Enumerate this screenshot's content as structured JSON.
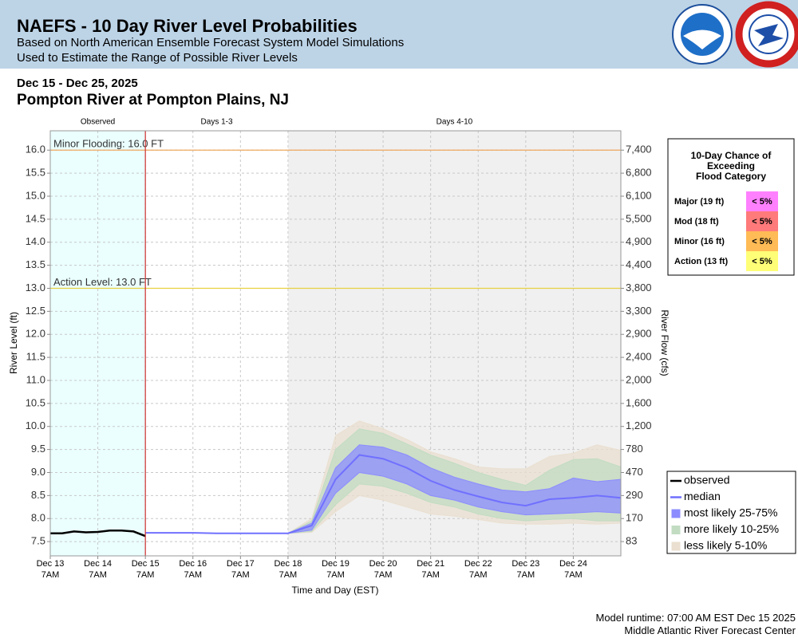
{
  "header": {
    "title": "NAEFS - 10 Day River Level Probabilities",
    "subtitle_1": "Based on North American Ensemble Forecast System Model Simulations",
    "subtitle_2": "Used to Estimate the Range of Possible River Levels",
    "date_range": "Dec 15 - Dec 25, 2025",
    "location": "Pompton River at Pompton Plains, NJ"
  },
  "chart_data": {
    "type": "probability-band",
    "y_label": "River Level (ft)",
    "y2_label": "River Flow (cfs)",
    "x_label": "Time and Day (EST)",
    "xlim": [
      "2025-12-13T07:00",
      "2025-12-25T07:00"
    ],
    "xticks": [
      {
        "value": "2025-12-13T07:00",
        "label": "Dec 13\n7AM"
      },
      {
        "value": "2025-12-14T07:00",
        "label": "Dec 14\n7AM"
      },
      {
        "value": "2025-12-15T07:00",
        "label": "Dec 15\n7AM"
      },
      {
        "value": "2025-12-16T07:00",
        "label": "Dec 16\n7AM"
      },
      {
        "value": "2025-12-17T07:00",
        "label": "Dec 17\n7AM"
      },
      {
        "value": "2025-12-18T07:00",
        "label": "Dec 18\n7AM"
      },
      {
        "value": "2025-12-19T07:00",
        "label": "Dec 19\n7AM"
      },
      {
        "value": "2025-12-20T07:00",
        "label": "Dec 20\n7AM"
      },
      {
        "value": "2025-12-21T07:00",
        "label": "Dec 21\n7AM"
      },
      {
        "value": "2025-12-22T07:00",
        "label": "Dec 22\n7AM"
      },
      {
        "value": "2025-12-23T07:00",
        "label": "Dec 23\n7AM"
      },
      {
        "value": "2025-12-24T07:00",
        "label": "Dec 24\n7AM"
      }
    ],
    "ylim": [
      7.19,
      16.42
    ],
    "yticks": [
      7.5,
      {
        "value": 8,
        "label": "8.0"
      },
      8.5,
      {
        "value": 9,
        "label": "9.0"
      },
      9.5,
      {
        "value": 10,
        "label": "10.0"
      },
      10.5,
      {
        "value": 11,
        "label": "11.0"
      },
      11.5,
      {
        "value": 12,
        "label": "12.0"
      },
      12.5,
      {
        "value": 13,
        "label": "13.0"
      },
      13.5,
      {
        "value": 14,
        "label": "14.0"
      },
      14.5,
      {
        "value": 15,
        "label": "15.0"
      },
      15.5,
      {
        "value": 16,
        "label": "16.0"
      }
    ],
    "y2ticks": [
      83,
      170,
      290,
      470,
      780,
      {
        "value": 1200,
        "label": "1,200"
      },
      {
        "value": 1600,
        "label": "1,600"
      },
      {
        "value": 2000,
        "label": "2,000"
      },
      {
        "value": 2400,
        "label": "2,400"
      },
      {
        "value": 2900,
        "label": "2,900"
      },
      {
        "value": 3300,
        "label": "3,300"
      },
      {
        "value": 3800,
        "label": "3,800"
      },
      {
        "value": 4400,
        "label": "4,400"
      },
      {
        "value": 4900,
        "label": "4,900"
      },
      {
        "value": 5500,
        "label": "5,500"
      },
      {
        "value": 6100,
        "label": "6,100"
      },
      {
        "value": 6800,
        "label": "6,800"
      },
      {
        "value": 7400,
        "label": "7,400"
      }
    ],
    "grid": true,
    "regions": [
      {
        "label": "Observed",
        "start": "2025-12-13T07:00",
        "end": "2025-12-15T07:00",
        "color": "#ebffff"
      },
      {
        "label": "Days 1-3",
        "start": "2025-12-15T07:00",
        "end": "2025-12-18T07:00",
        "color": "#ffffff"
      },
      {
        "label": "Days 4-10",
        "start": "2025-12-18T07:00",
        "end": "2025-12-25T07:00",
        "color": "#f0f0f0"
      }
    ],
    "thresholds": [
      {
        "label": "Minor Flooding: 16.0 FT",
        "value": 16.0,
        "color": "#f0a860"
      },
      {
        "label": "Action Level: 13.0 FT",
        "value": 13.0,
        "color": "#e8d040"
      }
    ],
    "x": [
      "2025-12-15T07:00",
      "2025-12-15T19:00",
      "2025-12-16T07:00",
      "2025-12-16T19:00",
      "2025-12-17T07:00",
      "2025-12-17T19:00",
      "2025-12-18T07:00",
      "2025-12-18T19:00",
      "2025-12-19T07:00",
      "2025-12-19T19:00",
      "2025-12-20T07:00",
      "2025-12-20T19:00",
      "2025-12-21T07:00",
      "2025-12-21T19:00",
      "2025-12-22T07:00",
      "2025-12-22T19:00",
      "2025-12-23T07:00",
      "2025-12-23T19:00",
      "2025-12-24T07:00",
      "2025-12-24T19:00",
      "2025-12-25T07:00"
    ],
    "series": [
      {
        "name": "observed",
        "kind": "line",
        "color": "#000000",
        "x": [
          "2025-12-13T07:00",
          "2025-12-13T13:00",
          "2025-12-13T19:00",
          "2025-12-14T01:00",
          "2025-12-14T07:00",
          "2025-12-14T13:00",
          "2025-12-14T19:00",
          "2025-12-15T01:00",
          "2025-12-15T07:00"
        ],
        "values": [
          7.68,
          7.68,
          7.72,
          7.7,
          7.71,
          7.74,
          7.74,
          7.72,
          7.62
        ]
      },
      {
        "name": "median",
        "kind": "line",
        "color": "#7070ff",
        "values": [
          7.69,
          7.69,
          7.69,
          7.68,
          7.68,
          7.68,
          7.68,
          7.85,
          8.85,
          9.38,
          9.3,
          9.1,
          8.82,
          8.62,
          8.48,
          8.35,
          8.28,
          8.42,
          8.45,
          8.5,
          8.45
        ]
      },
      {
        "name": "most likely 25-75%",
        "kind": "band",
        "color": "#8c8cff",
        "high": [
          7.69,
          7.69,
          7.69,
          7.68,
          7.68,
          7.68,
          7.68,
          7.9,
          9.1,
          9.6,
          9.55,
          9.38,
          9.1,
          8.9,
          8.75,
          8.62,
          8.58,
          8.65,
          8.88,
          8.8,
          8.85
        ],
        "low": [
          7.69,
          7.69,
          7.69,
          7.68,
          7.68,
          7.68,
          7.68,
          7.75,
          8.55,
          9.0,
          8.92,
          8.75,
          8.5,
          8.4,
          8.25,
          8.15,
          8.08,
          8.1,
          8.12,
          8.15,
          8.12
        ]
      },
      {
        "name": "more likely 10-25%",
        "kind": "band",
        "color": "#c2dcc2",
        "high": [
          7.69,
          7.69,
          7.69,
          7.68,
          7.68,
          7.68,
          7.68,
          7.95,
          9.5,
          9.95,
          9.85,
          9.62,
          9.38,
          9.2,
          9.0,
          8.85,
          8.72,
          9.05,
          9.28,
          9.3,
          9.12
        ],
        "low": [
          7.69,
          7.69,
          7.69,
          7.68,
          7.68,
          7.68,
          7.68,
          7.72,
          8.3,
          8.75,
          8.7,
          8.55,
          8.35,
          8.25,
          8.1,
          8.0,
          7.95,
          7.98,
          8.0,
          7.95,
          7.95
        ]
      },
      {
        "name": "less likely 5-10%",
        "kind": "band",
        "color": "#eadfd0",
        "high": [
          7.69,
          7.69,
          7.69,
          7.68,
          7.68,
          7.68,
          7.68,
          8.0,
          9.8,
          10.12,
          9.95,
          9.72,
          9.45,
          9.3,
          9.12,
          9.08,
          9.08,
          9.35,
          9.42,
          9.6,
          9.48
        ],
        "low": [
          7.69,
          7.69,
          7.69,
          7.68,
          7.68,
          7.68,
          7.68,
          7.7,
          8.15,
          8.5,
          8.4,
          8.25,
          8.1,
          8.05,
          7.98,
          7.9,
          7.88,
          7.88,
          7.9,
          7.88,
          7.9
        ]
      }
    ]
  },
  "flood_table": {
    "title": "10-Day Chance of\nExceeding\nFlood Category",
    "rows": [
      {
        "category": "Major (19 ft)",
        "chance": "< 5%",
        "color": "#ff80ff"
      },
      {
        "category": "Mod (18 ft)",
        "chance": "< 5%",
        "color": "#ff7a7a"
      },
      {
        "category": "Minor (16 ft)",
        "chance": "< 5%",
        "color": "#ffbb55"
      },
      {
        "category": "Action (13 ft)",
        "chance": "< 5%",
        "color": "#ffff77"
      }
    ]
  },
  "footer": {
    "runtime": "Model runtime: 07:00 AM EST Dec 15 2025",
    "center": "Middle Atlantic River Forecast Center"
  }
}
